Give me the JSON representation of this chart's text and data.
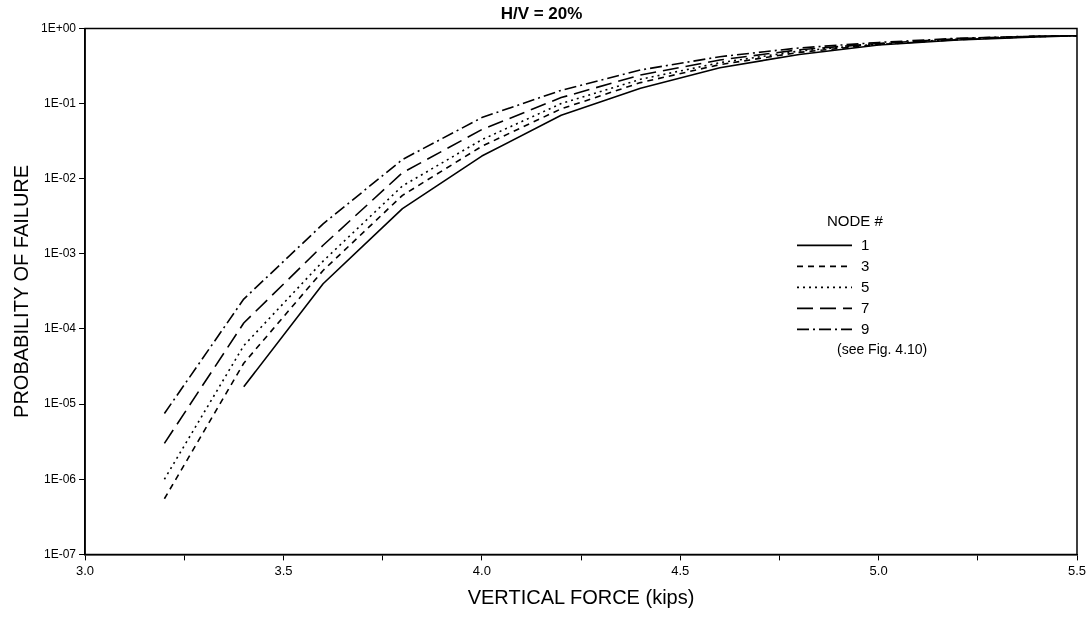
{
  "chart_data": {
    "type": "line",
    "title": "H/V = 20%",
    "xlabel": "VERTICAL FORCE (kips)",
    "ylabel": "PROBABILITY OF FAILURE",
    "legend_title": "NODE #",
    "legend": "right",
    "log": "y",
    "grid": false,
    "marker": "none",
    "xlim": [
      3.0,
      5.5
    ],
    "xticks": [
      {
        "value": 3.0,
        "label": "3.0"
      },
      {
        "value": 3.25,
        "label": null
      },
      3.5,
      {
        "value": 3.75,
        "label": null
      },
      {
        "value": 4.0,
        "label": "4.0"
      },
      {
        "value": 4.25,
        "label": null
      },
      4.5,
      {
        "value": 4.75,
        "label": null
      },
      {
        "value": 5.0,
        "label": "5.0"
      },
      {
        "value": 5.25,
        "label": null
      },
      5.5
    ],
    "ylim": [
      1e-07,
      1
    ],
    "yticks": [
      {
        "value": 1e-07,
        "label": "1E-07"
      },
      {
        "value": 1e-06,
        "label": "1E-06"
      },
      {
        "value": 1e-05,
        "label": "1E-05"
      },
      {
        "value": 0.0001,
        "label": "1E-04"
      },
      {
        "value": 0.001,
        "label": "1E-03"
      },
      {
        "value": 0.01,
        "label": "1E-02"
      },
      {
        "value": 0.1,
        "label": "1E-01"
      },
      {
        "value": 1,
        "label": "1E+00"
      }
    ],
    "annotations": [
      "(see Fig. 4.10)"
    ],
    "series": [
      {
        "name": "1",
        "color": "#000000",
        "line_style": "solid",
        "x": [
          3.4,
          3.6,
          3.8,
          4.0,
          4.2,
          4.4,
          4.6,
          4.8,
          5.0,
          5.2,
          5.4,
          5.5
        ],
        "values": [
          1.7e-05,
          0.0004,
          0.004,
          0.02,
          0.07,
          0.16,
          0.3,
          0.45,
          0.6,
          0.7,
          0.77,
          0.8
        ]
      },
      {
        "name": "3",
        "color": "#000000",
        "line_style": "dashed",
        "x": [
          3.2,
          3.4,
          3.6,
          3.8,
          4.0,
          4.2,
          4.4,
          4.6,
          4.8,
          5.0,
          5.2,
          5.4,
          5.5
        ],
        "values": [
          5.5e-07,
          3.5e-05,
          0.0006,
          0.006,
          0.027,
          0.085,
          0.19,
          0.33,
          0.48,
          0.61,
          0.71,
          0.78,
          0.8
        ]
      },
      {
        "name": "5",
        "color": "#000000",
        "line_style": "dotted",
        "x": [
          3.2,
          3.4,
          3.6,
          3.8,
          4.0,
          4.2,
          4.4,
          4.6,
          4.8,
          5.0,
          5.2,
          5.4,
          5.5
        ],
        "values": [
          1e-06,
          6e-05,
          0.0008,
          0.008,
          0.033,
          0.1,
          0.21,
          0.35,
          0.5,
          0.62,
          0.72,
          0.78,
          0.8
        ]
      },
      {
        "name": "7",
        "color": "#000000",
        "line_style": "dashed",
        "x": [
          3.2,
          3.4,
          3.6,
          3.8,
          4.0,
          4.2,
          4.4,
          4.6,
          4.8,
          5.0,
          5.2,
          5.4,
          5.5
        ],
        "values": [
          3e-06,
          0.00012,
          0.0013,
          0.012,
          0.045,
          0.12,
          0.24,
          0.38,
          0.52,
          0.63,
          0.73,
          0.79,
          0.8
        ]
      },
      {
        "name": "9",
        "color": "#000000",
        "line_style": "dashdot",
        "x": [
          3.2,
          3.4,
          3.6,
          3.8,
          4.0,
          4.2,
          4.4,
          4.6,
          4.8,
          5.0,
          5.2,
          5.4,
          5.5
        ],
        "values": [
          7.5e-06,
          0.00025,
          0.0025,
          0.018,
          0.065,
          0.15,
          0.28,
          0.42,
          0.55,
          0.65,
          0.74,
          0.79,
          0.8
        ]
      }
    ]
  }
}
